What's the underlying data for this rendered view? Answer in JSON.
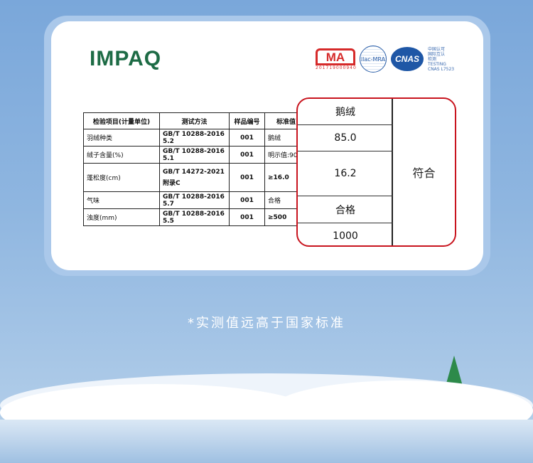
{
  "brand": {
    "logo": "IMPAQ"
  },
  "certs": {
    "ma": "MA",
    "ma_number": "201719000940",
    "ilac": "ilac-MRA",
    "cnas": "CNAS",
    "cnas_text": [
      "中国认可",
      "国际互认",
      "检测",
      "TESTING",
      "CNAS L7523"
    ]
  },
  "table": {
    "headers": [
      "检验项目(计量单位)",
      "测试方法",
      "样品编号",
      "标准值"
    ],
    "rows": [
      [
        "羽绒种类",
        "GB/T 10288-2016 5.2",
        "001",
        "鹅绒"
      ],
      [
        "绒子含量(%)",
        "GB/T 10288-2016 5.1",
        "001",
        "明示值:90;"
      ],
      [
        "蓬松度(cm)",
        "GB/T 14272-2021 附录C",
        "001",
        "≥16.0"
      ],
      [
        "气味",
        "GB/T 10288-2016 5.7",
        "001",
        "合格"
      ],
      [
        "浊度(mm)",
        "GB/T 10288-2016 5.5",
        "001",
        "≥500"
      ]
    ]
  },
  "results": {
    "values": [
      "鹅绒",
      "85.0",
      "16.2",
      "合格",
      "1000"
    ],
    "verdict": "符合",
    "highlight_color": "#c8141e"
  },
  "note": "*实测值远高于国家标准"
}
